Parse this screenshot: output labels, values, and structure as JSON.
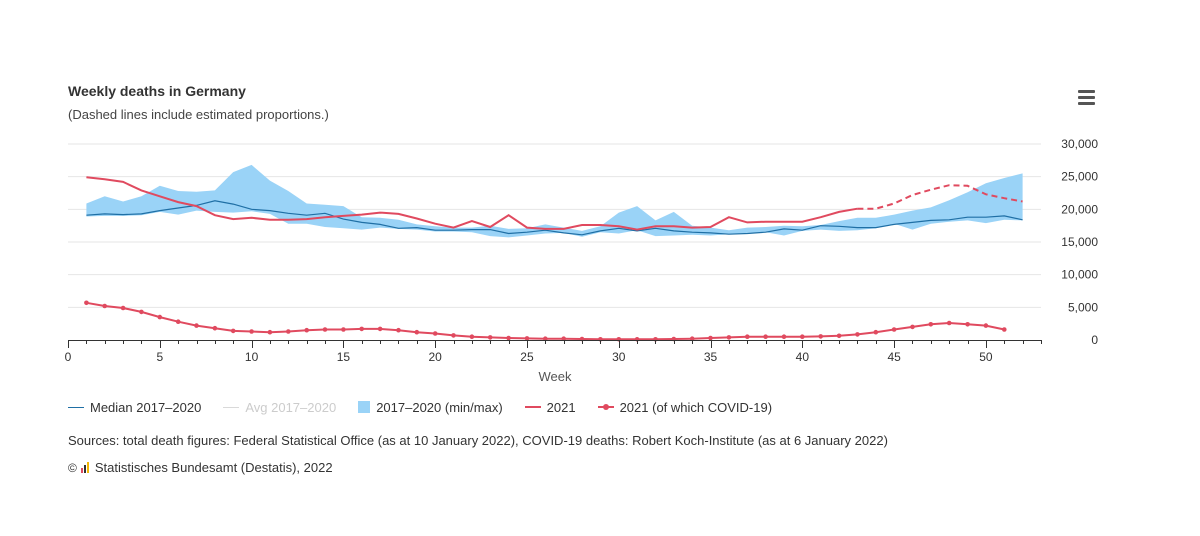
{
  "header": {
    "title": "Weekly deaths in Germany",
    "subtitle": "(Dashed lines include estimated proportions.)"
  },
  "menu": {
    "icon": "hamburger-menu-icon"
  },
  "legend": {
    "median": "Median 2017–2020",
    "avg": "Avg 2017–2020",
    "range": "2017–2020 (min/max)",
    "y2021": "2021",
    "covid": "2021 (of which COVID-19)"
  },
  "sources": "Sources: total death figures: Federal Statistical Office (as at 10 January 2022), COVID-19 deaths: Robert Koch-Institute (as at 6 January 2022)",
  "credits": {
    "copyright_symbol": "©",
    "text": "Statistisches Bundesamt (Destatis), 2022"
  },
  "colors": {
    "median": "#1f6fa5",
    "avg": "#d9d9d9",
    "range": "#9ad3f7",
    "y2021": "#e04a5f",
    "grid": "#e6e6e6",
    "axis": "#333333"
  },
  "chart_data": {
    "type": "line",
    "title": "Weekly deaths in Germany",
    "subtitle": "(Dashed lines include estimated proportions.)",
    "xlabel": "Week",
    "ylabel": "",
    "xlim": [
      0,
      53
    ],
    "ylim": [
      0,
      30000
    ],
    "x_ticks": [
      0,
      5,
      10,
      15,
      20,
      25,
      30,
      35,
      40,
      45,
      50
    ],
    "y_ticks": [
      0,
      5000,
      10000,
      15000,
      20000,
      25000,
      30000
    ],
    "y_tick_labels": [
      "0",
      "5,000",
      "10,000",
      "15,000",
      "20,000",
      "25,000",
      "30,000"
    ],
    "y_axis_side": "right",
    "grid": true,
    "legend_position": "bottom-left",
    "weeks": [
      1,
      2,
      3,
      4,
      5,
      6,
      7,
      8,
      9,
      10,
      11,
      12,
      13,
      14,
      15,
      16,
      17,
      18,
      19,
      20,
      21,
      22,
      23,
      24,
      25,
      26,
      27,
      28,
      29,
      30,
      31,
      32,
      33,
      34,
      35,
      36,
      37,
      38,
      39,
      40,
      41,
      42,
      43,
      44,
      45,
      46,
      47,
      48,
      49,
      50,
      51,
      52
    ],
    "series": [
      {
        "name": "2017–2020 (min/max)",
        "type": "arearange",
        "min": [
          18900,
          19000,
          19000,
          19100,
          19600,
          19200,
          19800,
          19600,
          19500,
          19700,
          19300,
          17800,
          17800,
          17300,
          17100,
          16900,
          17200,
          17000,
          16900,
          16600,
          16600,
          16500,
          15900,
          15700,
          16000,
          16300,
          16400,
          15800,
          16500,
          16300,
          16800,
          15900,
          16000,
          16100,
          16000,
          16200,
          16400,
          16500,
          16000,
          16700,
          16900,
          16700,
          16800,
          17100,
          17800,
          16900,
          17800,
          18100,
          18300,
          17900,
          18400,
          18300
        ],
        "max": [
          20900,
          22000,
          21200,
          22000,
          23600,
          22800,
          22700,
          22900,
          25700,
          26800,
          24400,
          22800,
          20900,
          20700,
          20500,
          18800,
          18700,
          18400,
          17700,
          17400,
          17200,
          17200,
          17500,
          17000,
          17100,
          17700,
          17200,
          16700,
          17400,
          19500,
          20500,
          18300,
          19600,
          17500,
          17200,
          16800,
          17200,
          17300,
          17500,
          17400,
          17600,
          18200,
          18700,
          18700,
          19200,
          19800,
          20300,
          21400,
          22600,
          24000,
          24800,
          25500
        ]
      },
      {
        "name": "Median 2017–2020",
        "values": [
          19100,
          19300,
          19200,
          19300,
          19800,
          20200,
          20600,
          21300,
          20800,
          20000,
          19800,
          19400,
          19100,
          19400,
          18500,
          18000,
          17700,
          17100,
          17200,
          16800,
          16800,
          16900,
          16900,
          16300,
          16500,
          16800,
          16400,
          16100,
          16700,
          17100,
          16700,
          17100,
          16700,
          16500,
          16400,
          16200,
          16300,
          16500,
          17000,
          16800,
          17500,
          17400,
          17200,
          17200,
          17700,
          18000,
          18300,
          18400,
          18800,
          18800,
          19000,
          18400
        ]
      },
      {
        "name": "Avg 2017–2020",
        "hidden": true,
        "values": []
      },
      {
        "name": "2021",
        "values": [
          24900,
          24600,
          24200,
          22900,
          22000,
          21100,
          20500,
          19100,
          18500,
          18700,
          18400,
          18400,
          18500,
          18800,
          19000,
          19200,
          19500,
          19300,
          18600,
          17800,
          17200,
          18200,
          17300,
          19100,
          17200,
          17000,
          17000,
          17600,
          17600,
          17400,
          16900,
          17400,
          17400,
          17200,
          17300,
          18800,
          18000,
          18100,
          18100,
          18100,
          18800,
          19600,
          20100
        ],
        "estimated_weeks": [
          43,
          44,
          45,
          46,
          47,
          48,
          49,
          50,
          51,
          52
        ],
        "estimated_values": [
          20100,
          20100,
          20900,
          22200,
          23000,
          23700,
          23600,
          22300,
          21700,
          21200
        ]
      },
      {
        "name": "2021 (of which COVID-19)",
        "values": [
          5700,
          5200,
          4900,
          4300,
          3500,
          2800,
          2200,
          1800,
          1400,
          1300,
          1200,
          1300,
          1500,
          1600,
          1600,
          1700,
          1700,
          1500,
          1200,
          1000,
          700,
          500,
          400,
          300,
          250,
          200,
          200,
          150,
          100,
          100,
          100,
          100,
          150,
          200,
          300,
          400,
          500,
          500,
          500,
          500,
          550,
          650,
          850,
          1200,
          1600,
          2000,
          2400,
          2600,
          2400,
          2200,
          1600
        ]
      }
    ]
  }
}
